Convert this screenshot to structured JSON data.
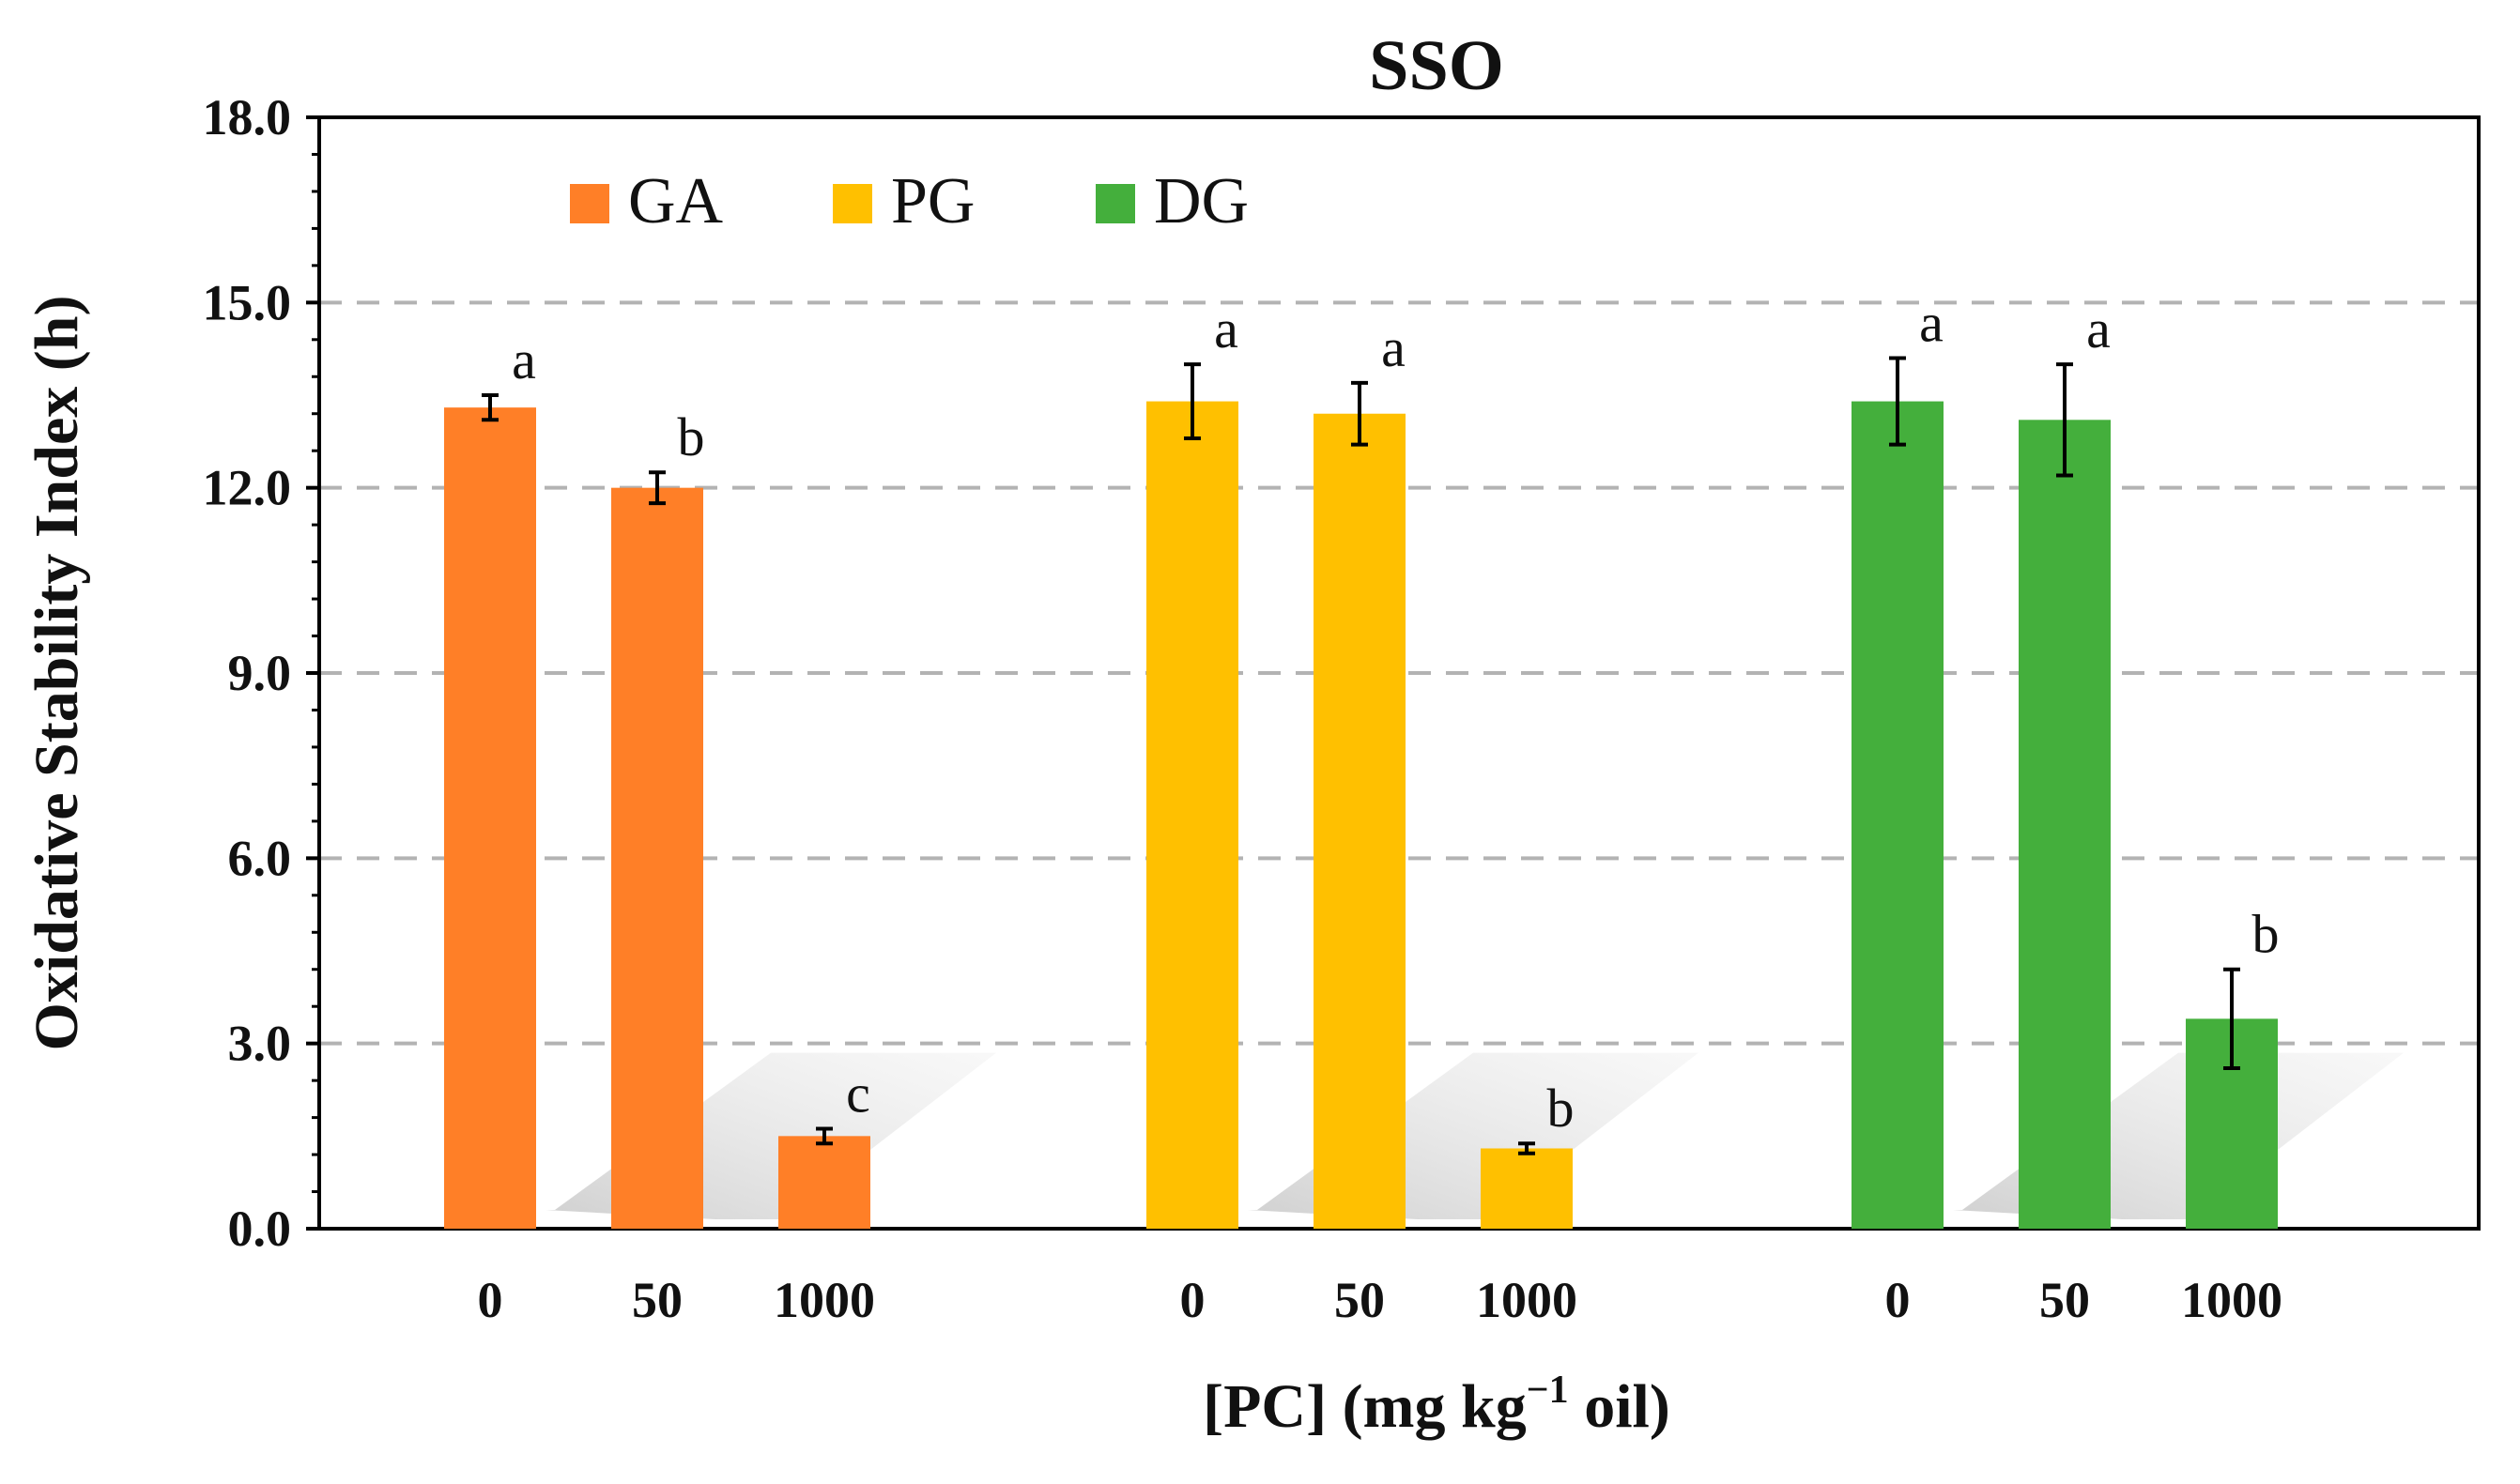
{
  "chart_data": {
    "type": "bar",
    "title": "SSO",
    "xlabel": "[PC] (mg kg",
    "xlabel_sup": "−1",
    "xlabel_suffix": " oil)",
    "ylabel": "Oxidative Stability Index (h)",
    "ylim": [
      0,
      18
    ],
    "yticks": [
      "0.0",
      "3.0",
      "6.0",
      "9.0",
      "12.0",
      "15.0",
      "18.0"
    ],
    "grid": true,
    "legend_position": "top-left",
    "categories": [
      "0",
      "50",
      "1000"
    ],
    "series": [
      {
        "name": "GA",
        "color": "#FF7F27",
        "values": [
          13.3,
          12.0,
          1.5
        ],
        "errors": [
          0.2,
          0.25,
          0.12
        ],
        "labels": [
          "a",
          "b",
          "c"
        ]
      },
      {
        "name": "PG",
        "color": "#FFC000",
        "values": [
          13.4,
          13.2,
          1.3
        ],
        "errors": [
          0.6,
          0.5,
          0.08
        ],
        "labels": [
          "a",
          "a",
          "b"
        ]
      },
      {
        "name": "DG",
        "color": "#44AF3C",
        "values": [
          13.4,
          13.1,
          3.4
        ],
        "errors": [
          0.7,
          0.9,
          0.8
        ],
        "labels": [
          "a",
          "a",
          "b"
        ]
      }
    ]
  }
}
